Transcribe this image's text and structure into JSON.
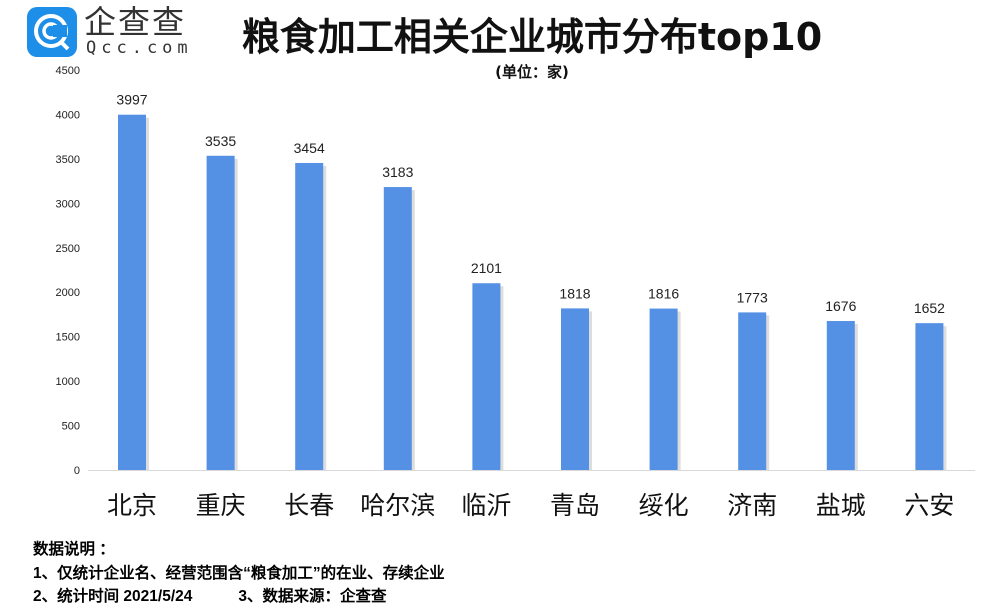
{
  "logo": {
    "cn": "企查查",
    "en": "Qcc.com",
    "color": "#1e8fe8"
  },
  "title": "粮食加工相关企业城市分布top10",
  "unit": "(单位：家)",
  "notes": {
    "heading": "数据说明 ：",
    "line1": "1、仅统计企业名、经营范围含“粮食加工”的在业、存续企业",
    "line2a": "2、统计时间  2021/5/24",
    "line2b": "3、数据来源：企查查"
  },
  "chart_data": {
    "type": "bar",
    "categories": [
      "北京",
      "重庆",
      "长春",
      "哈尔滨",
      "临沂",
      "青岛",
      "绥化",
      "济南",
      "盐城",
      "六安"
    ],
    "values": [
      3997,
      3535,
      3454,
      3183,
      2101,
      1818,
      1816,
      1773,
      1676,
      1652
    ],
    "ylim": [
      0,
      4500
    ],
    "yticks": [
      0,
      500,
      1000,
      1500,
      2000,
      2500,
      3000,
      3500,
      4000,
      4500
    ],
    "bar_color": "#5490e3",
    "grid": false
  }
}
